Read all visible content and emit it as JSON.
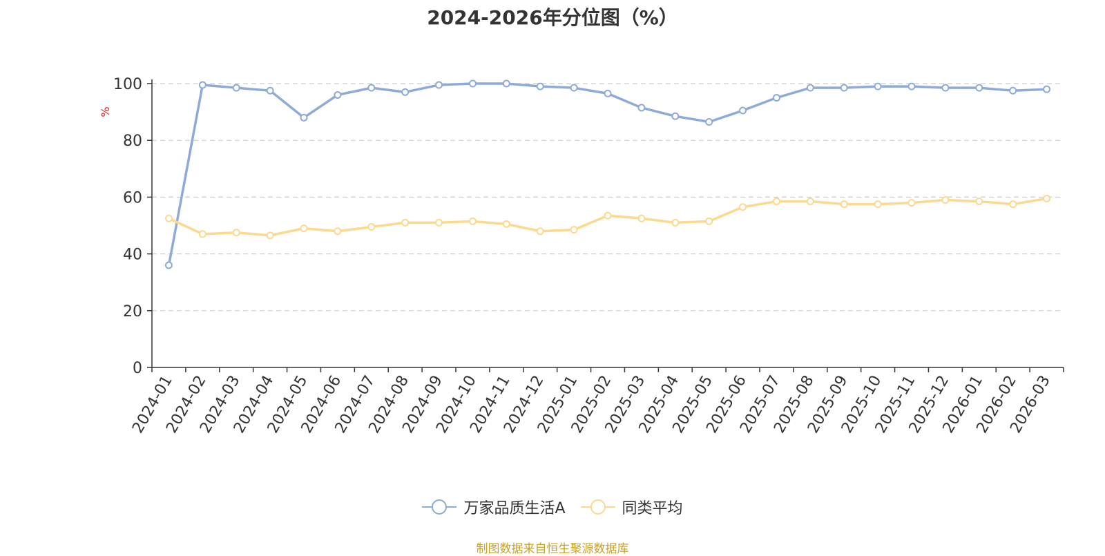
{
  "title": "2024-2026年分位图（%）",
  "source_note": "制图数据来自恒生聚源数据库",
  "colors": {
    "series_a": "#8eaad8",
    "series_b": "#fdd88f",
    "unit_label": "#e02020",
    "source": "#c9a227"
  },
  "chart_data": {
    "type": "line",
    "title": "2024-2026年分位图（%）",
    "ylabel": "%",
    "xlabel": "",
    "ylim": [
      0,
      100
    ],
    "yticks": [
      0,
      20,
      40,
      60,
      80,
      100
    ],
    "grid": true,
    "legend_position": "bottom",
    "categories": [
      "2024-01",
      "2024-02",
      "2024-03",
      "2024-04",
      "2024-05",
      "2024-06",
      "2024-07",
      "2024-08",
      "2024-09",
      "2024-10",
      "2024-11",
      "2024-12",
      "2025-01",
      "2025-02",
      "2025-03",
      "2025-04",
      "2025-05",
      "2025-06",
      "2025-07",
      "2025-08",
      "2025-09",
      "2025-10",
      "2025-11",
      "2025-12",
      "2026-01",
      "2026-02",
      "2026-03"
    ],
    "series": [
      {
        "name": "万家品质生活A",
        "color": "#8eaad8",
        "values": [
          36,
          99.5,
          98.5,
          97.5,
          88,
          96,
          98.5,
          97,
          99.5,
          100,
          100,
          99,
          98.5,
          96.5,
          91.5,
          88.5,
          86.5,
          90.5,
          95,
          98.5,
          98.5,
          99,
          99,
          98.5,
          98.5,
          97.5,
          98
        ]
      },
      {
        "name": "同类平均",
        "color": "#fdd88f",
        "values": [
          52.5,
          47,
          47.5,
          46.5,
          49,
          48,
          49.5,
          51,
          51,
          51.5,
          50.5,
          48,
          48.5,
          53.5,
          52.5,
          51,
          51.5,
          56.5,
          58.5,
          58.5,
          57.5,
          57.5,
          58,
          59,
          58.5,
          57.5,
          59.5
        ]
      }
    ]
  }
}
